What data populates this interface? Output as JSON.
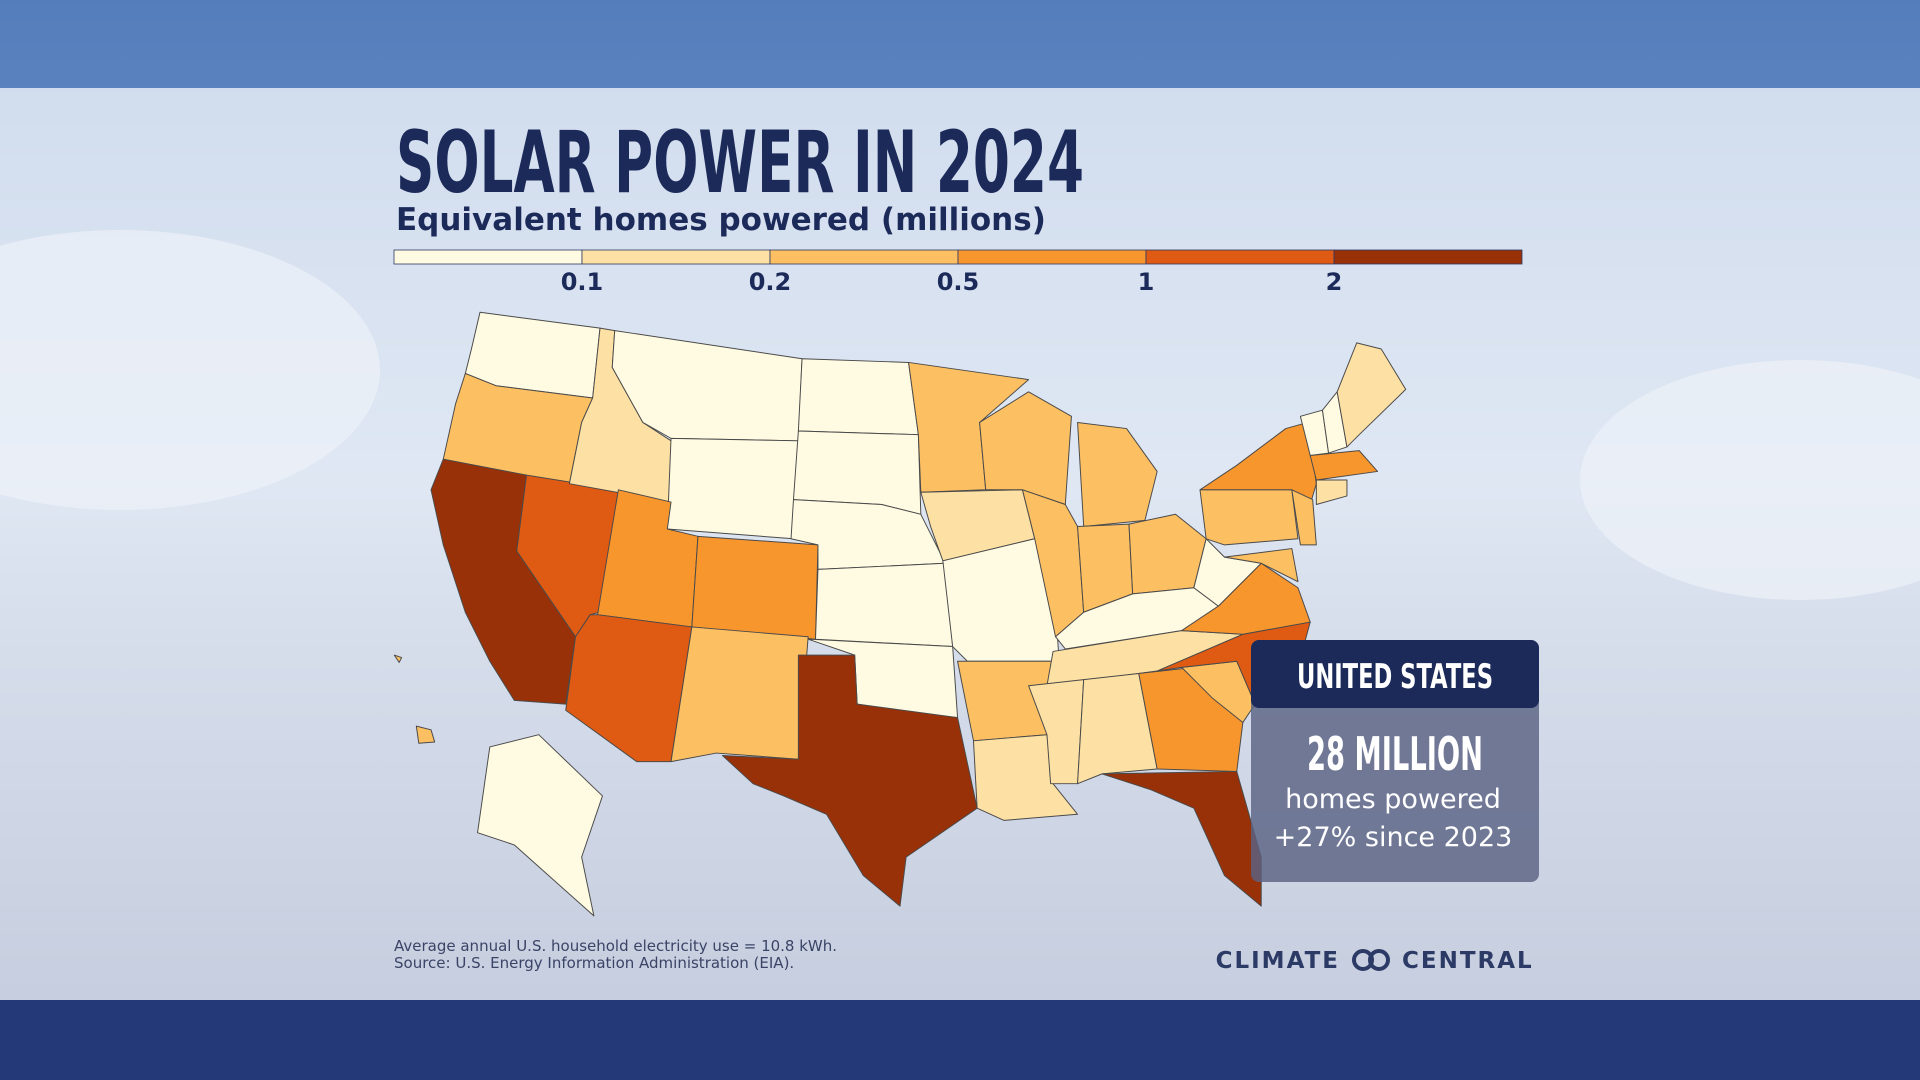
{
  "header": {
    "title": "SOLAR POWER IN 2024",
    "subtitle": "Equivalent homes powered (millions)"
  },
  "legend": {
    "breaks": [
      0.1,
      0.2,
      0.5,
      1,
      2
    ],
    "colors": [
      "#fffbe2",
      "#fde0a4",
      "#fcbf62",
      "#f8962e",
      "#df5a12",
      "#983108"
    ]
  },
  "callout": {
    "region": "UNITED STATES",
    "value": "28 MILLION",
    "label": "homes powered",
    "change": "+27% since 2023"
  },
  "footnote": [
    "Average annual U.S. household electricity use = 10.8 kWh.",
    "Source: U.S. Energy Information Administration (EIA)."
  ],
  "logo": {
    "left": "CLIMATE",
    "right": "CENTRAL"
  }
}
